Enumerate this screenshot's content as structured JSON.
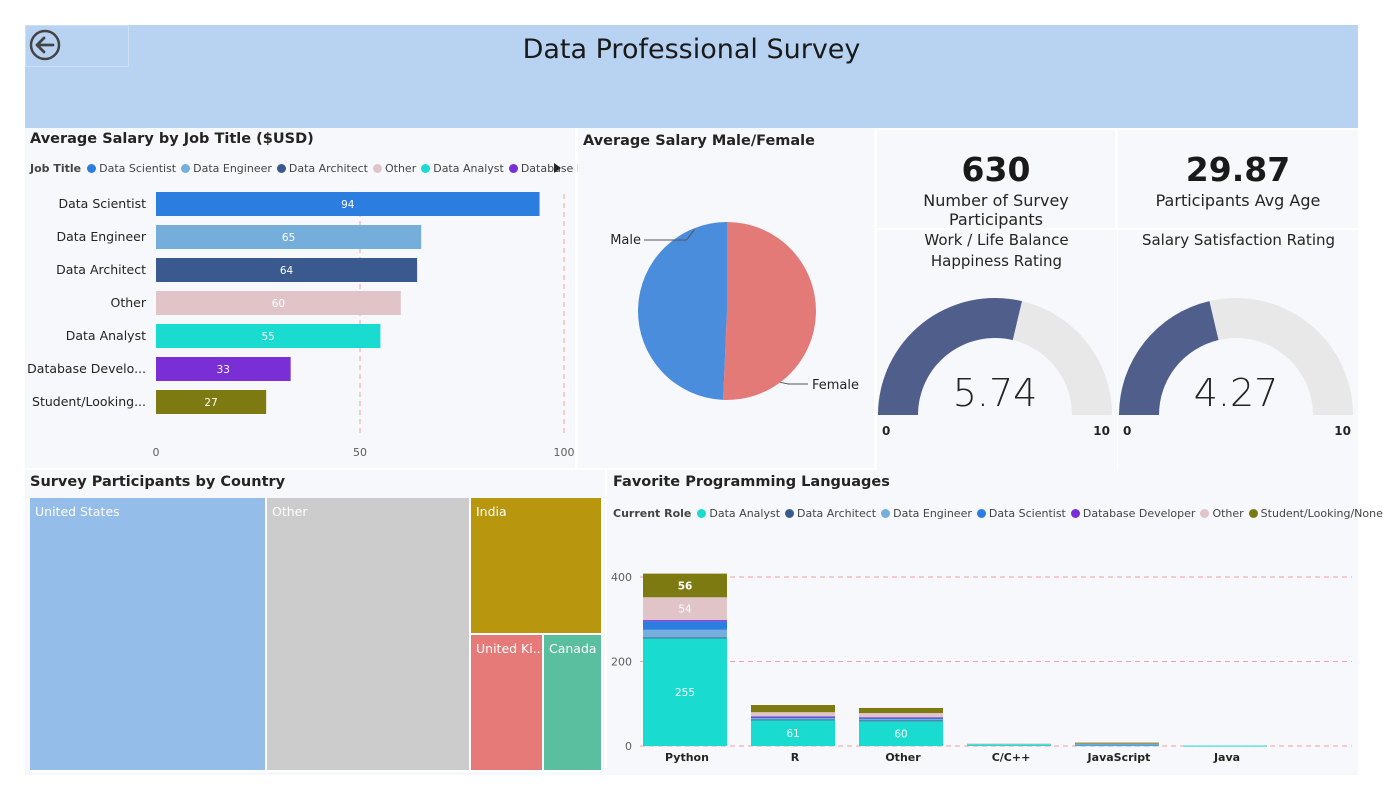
{
  "header": {
    "title": "Data Professional Survey",
    "back_icon": "back-arrow-icon"
  },
  "colors": {
    "data_scientist": "#2b7de0",
    "data_engineer": "#76aedb",
    "data_architect": "#3a5a8f",
    "other": "#e0c4c8",
    "data_analyst": "#1adbd0",
    "database_developer": "#7a2fd6",
    "student": "#7d7a12",
    "male": "#4a8ddc",
    "female": "#e47a78",
    "gauge_fill": "#4f5e8b",
    "gauge_track": "#e8e8e8"
  },
  "salary_by_job": {
    "title": "Average Salary by Job Title ($USD)",
    "legend_title": "Job Title",
    "legend_items": [
      "Data Scientist",
      "Data Engineer",
      "Data Architect",
      "Other",
      "Data Analyst",
      "Database D..."
    ],
    "chart_data": {
      "type": "bar",
      "orientation": "horizontal",
      "categories": [
        "Data Scientist",
        "Data Engineer",
        "Data Architect",
        "Other",
        "Data Analyst",
        "Database Develo...",
        "Student/Looking..."
      ],
      "values": [
        94,
        65,
        64,
        60,
        55,
        33,
        27
      ],
      "xlim": [
        0,
        100
      ],
      "xticks": [
        "0",
        "50",
        "100"
      ],
      "reference_lines": [
        50,
        100
      ]
    }
  },
  "salary_gender": {
    "title": "Average Salary Male/Female",
    "chart_data": {
      "type": "pie",
      "labels": [
        "Male",
        "Female"
      ],
      "values": [
        49.3,
        50.7
      ]
    }
  },
  "cards": [
    {
      "value": "630",
      "label": "Number of Survey Participants"
    },
    {
      "value": "29.87",
      "label": "Participants Avg Age"
    }
  ],
  "gauges": [
    {
      "title": "Work / Life Balance Happiness Rating",
      "value": 5.74,
      "display": "5.74",
      "min": "0",
      "max": "10"
    },
    {
      "title": "Salary Satisfaction Rating",
      "value": 4.27,
      "display": "4.27",
      "min": "0",
      "max": "10"
    }
  ],
  "country_treemap": {
    "title": "Survey Participants by Country",
    "chart_data": {
      "type": "treemap",
      "labels": [
        "United States",
        "Other",
        "India",
        "United Ki...",
        "Canada"
      ],
      "values": [
        262,
        226,
        145,
        76,
        67
      ]
    }
  },
  "languages": {
    "title": "Favorite Programming Languages",
    "legend_title": "Current Role",
    "legend_items": [
      "Data Analyst",
      "Data Architect",
      "Data Engineer",
      "Data Scientist",
      "Database Developer",
      "Other",
      "Student/Looking/None"
    ],
    "chart_data": {
      "type": "bar",
      "stacked": true,
      "categories": [
        "Python",
        "R",
        "Other",
        "C/C++",
        "JavaScript",
        "Java"
      ],
      "ylim": [
        0,
        400
      ],
      "yticks": [
        "0",
        "200",
        "400"
      ],
      "series": [
        {
          "name": "Data Analyst",
          "values": [
            255,
            61,
            60,
            5,
            2,
            1
          ]
        },
        {
          "name": "Data Architect",
          "values": [
            2,
            2,
            1,
            0,
            0,
            0
          ]
        },
        {
          "name": "Data Engineer",
          "values": [
            18,
            3,
            3,
            0,
            1,
            0
          ]
        },
        {
          "name": "Data Scientist",
          "values": [
            20,
            3,
            3,
            0,
            1,
            0
          ]
        },
        {
          "name": "Database Developer",
          "values": [
            3,
            1,
            1,
            0,
            0,
            0
          ]
        },
        {
          "name": "Other",
          "values": [
            54,
            10,
            10,
            1,
            3,
            0
          ]
        },
        {
          "name": "Student/Looking/None",
          "values": [
            56,
            17,
            12,
            0,
            1,
            0
          ]
        }
      ],
      "data_labels": [
        {
          "category": "Python",
          "series": "Data Analyst",
          "text": "255"
        },
        {
          "category": "Python",
          "series": "Other",
          "text": "54"
        },
        {
          "category": "Python",
          "series": "Student/Looking/None",
          "text": "56"
        },
        {
          "category": "R",
          "series": "Data Analyst",
          "text": "61"
        },
        {
          "category": "Other",
          "series": "Data Analyst",
          "text": "60"
        }
      ]
    }
  }
}
